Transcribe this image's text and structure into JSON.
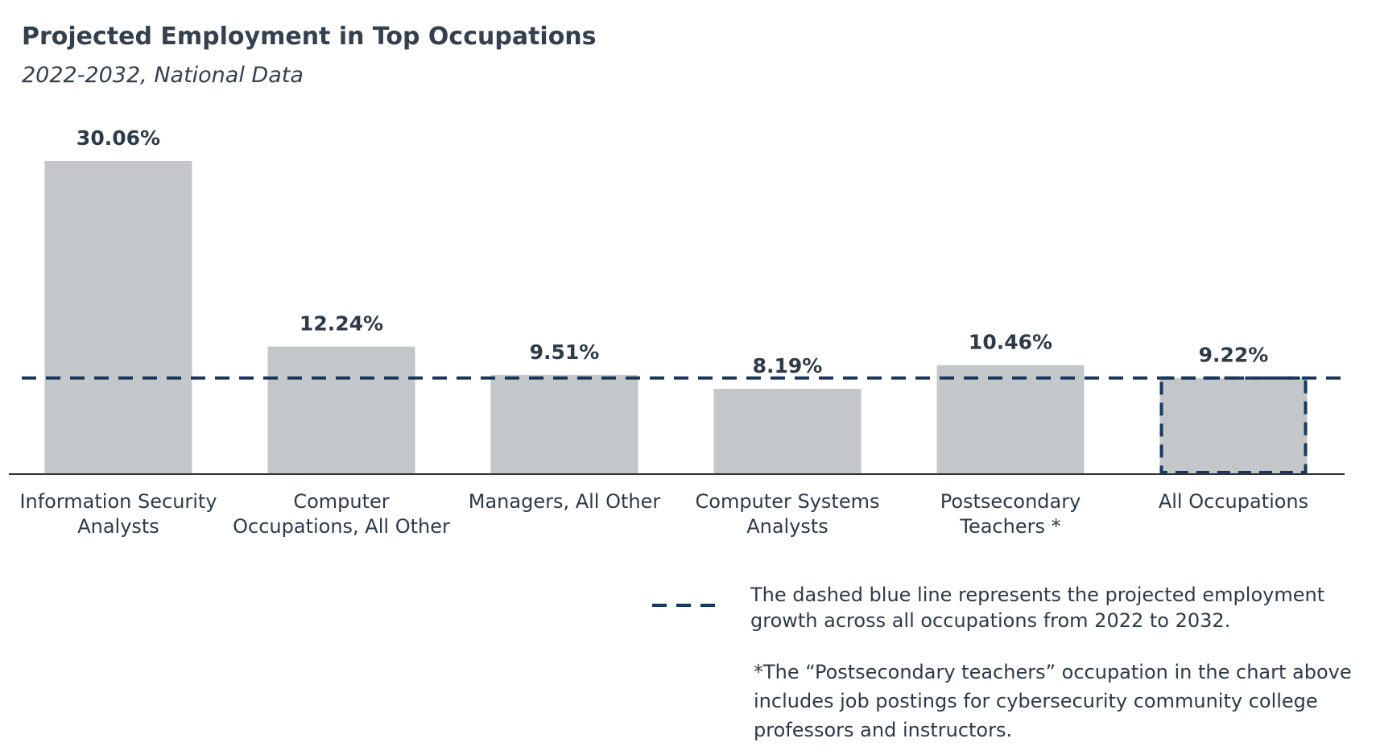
{
  "chart_data": {
    "type": "bar",
    "title": "Projected Employment in Top Occupations",
    "subtitle": "2022-2032, National Data",
    "categories": [
      "Information Security Analysts",
      "Computer Occupations, All Other",
      "Managers, All Other",
      "Computer Systems Analysts",
      "Postsecondary Teachers *",
      "All Occupations"
    ],
    "values": [
      30.06,
      12.24,
      9.51,
      8.19,
      10.46,
      9.22
    ],
    "value_labels": [
      "30.06%",
      "12.24%",
      "9.51%",
      "8.19%",
      "10.46%",
      "9.22%"
    ],
    "color": "#c4c7ca",
    "reference_color": "#17375e",
    "ylim": [
      0,
      35
    ],
    "legend_note": "The dashed blue line represents the projected employment growth across all occupations from 2022 to 2032.",
    "footnote": "*The “Postsecondary teachers” occupation in the chart above includes job postings for cybersecurity community college professors and instructors."
  }
}
